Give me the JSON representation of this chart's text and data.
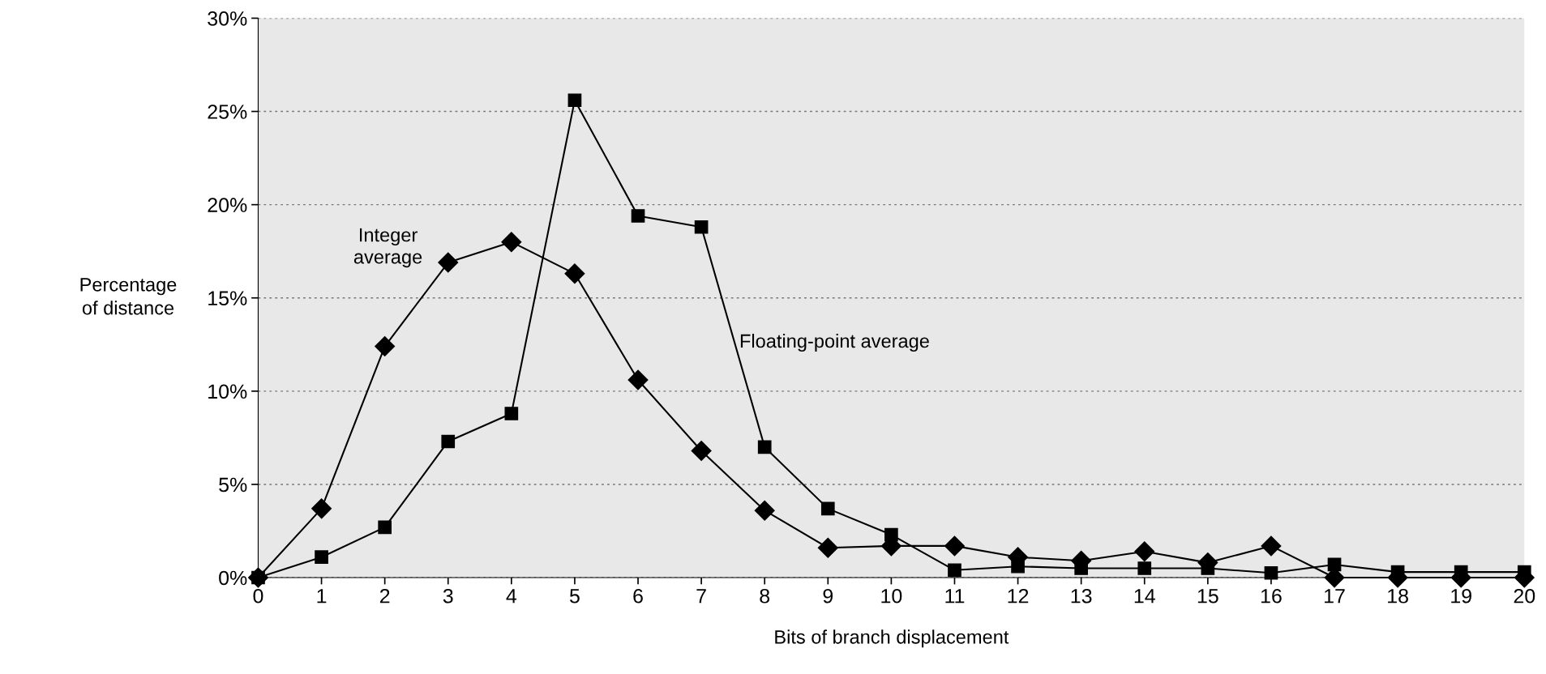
{
  "chart_data": {
    "type": "line",
    "xlabel": "Bits of branch displacement",
    "ylabel": "Percentage\nof distance",
    "x": [
      0,
      1,
      2,
      3,
      4,
      5,
      6,
      7,
      8,
      9,
      10,
      11,
      12,
      13,
      14,
      15,
      16,
      17,
      18,
      19,
      20
    ],
    "series": [
      {
        "name": "Integer\naverage",
        "color": "#000000",
        "marker": "diamond",
        "values": [
          0,
          3.7,
          12.4,
          16.9,
          18.0,
          16.3,
          10.6,
          6.8,
          3.6,
          1.6,
          1.7,
          1.7,
          1.1,
          0.9,
          1.4,
          0.8,
          1.7,
          0,
          0,
          0,
          0
        ]
      },
      {
        "name": "Floating-point average",
        "color": "#000000",
        "marker": "square",
        "values": [
          0,
          1.1,
          2.7,
          7.3,
          8.8,
          25.6,
          19.4,
          18.8,
          7.0,
          3.7,
          2.3,
          0.4,
          0.6,
          0.5,
          0.5,
          0.5,
          0.25,
          0.7,
          0.3,
          0.3,
          0.3
        ]
      }
    ],
    "xlim": [
      0,
      20
    ],
    "xticks": [
      0,
      1,
      2,
      3,
      4,
      5,
      6,
      7,
      8,
      9,
      10,
      11,
      12,
      13,
      14,
      15,
      16,
      17,
      18,
      19,
      20
    ],
    "ylim": [
      0,
      30
    ],
    "yticks": [
      {
        "value": 0,
        "label": "0%"
      },
      {
        "value": 5,
        "label": "5%"
      },
      {
        "value": 10,
        "label": "10%"
      },
      {
        "value": 15,
        "label": "15%"
      },
      {
        "value": 20,
        "label": "20%"
      },
      {
        "value": 25,
        "label": "25%"
      },
      {
        "value": 30,
        "label": "30%"
      }
    ],
    "grid": "y",
    "legend": false,
    "line_style": "solid"
  }
}
